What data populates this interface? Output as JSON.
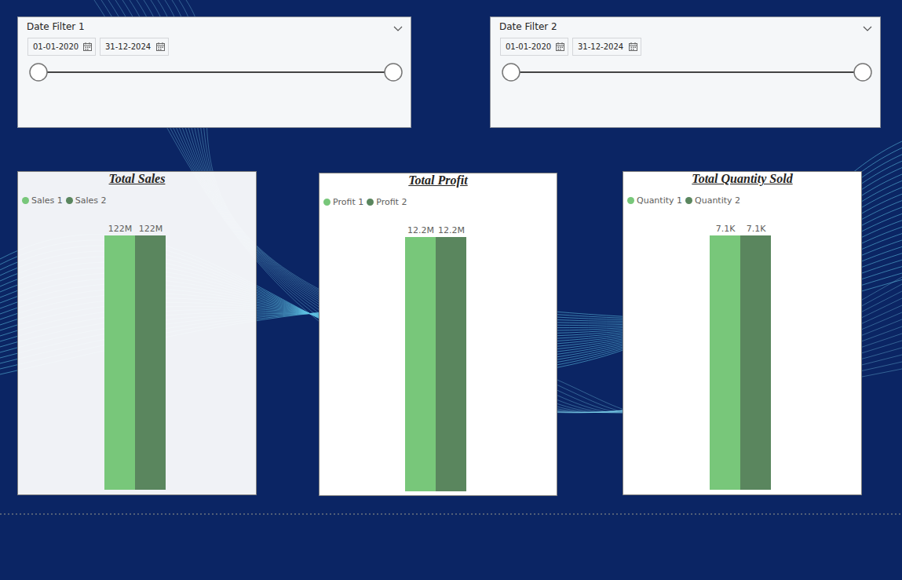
{
  "filters": [
    {
      "title": "Date Filter 1",
      "start": "01-01-2020",
      "end": "31-12-2024"
    },
    {
      "title": "Date Filter 2",
      "start": "01-01-2020",
      "end": "31-12-2024"
    }
  ],
  "chart_data": [
    {
      "type": "bar",
      "title": "Total Sales",
      "categories": [
        null
      ],
      "series": [
        {
          "name": "Sales 1",
          "color": "#78c77a",
          "values": [
            122000000
          ],
          "value_labels": [
            "122M"
          ]
        },
        {
          "name": "Sales 2",
          "color": "#5a865e",
          "values": [
            122000000
          ],
          "value_labels": [
            "122M"
          ]
        }
      ],
      "ylim": [
        0,
        122000000
      ],
      "data_labels": true,
      "tick_labels": false,
      "legend": "top-left"
    },
    {
      "type": "bar",
      "title": "Total Profit",
      "categories": [
        null
      ],
      "series": [
        {
          "name": "Profit 1",
          "color": "#78c77a",
          "values": [
            12200000
          ],
          "value_labels": [
            "12.2M"
          ]
        },
        {
          "name": "Profit 2",
          "color": "#5a865e",
          "values": [
            12200000
          ],
          "value_labels": [
            "12.2M"
          ]
        }
      ],
      "ylim": [
        0,
        12200000
      ],
      "data_labels": true,
      "tick_labels": false,
      "legend": "top-left"
    },
    {
      "type": "bar",
      "title": "Total Quantity Sold",
      "categories": [
        null
      ],
      "series": [
        {
          "name": "Quantity 1",
          "color": "#78c77a",
          "values": [
            7100
          ],
          "value_labels": [
            "7.1K"
          ]
        },
        {
          "name": "Quantity 2",
          "color": "#5a865e",
          "values": [
            7100
          ],
          "value_labels": [
            "7.1K"
          ]
        }
      ],
      "ylim": [
        0,
        7100
      ],
      "data_labels": true,
      "tick_labels": false,
      "legend": "top-left"
    }
  ]
}
